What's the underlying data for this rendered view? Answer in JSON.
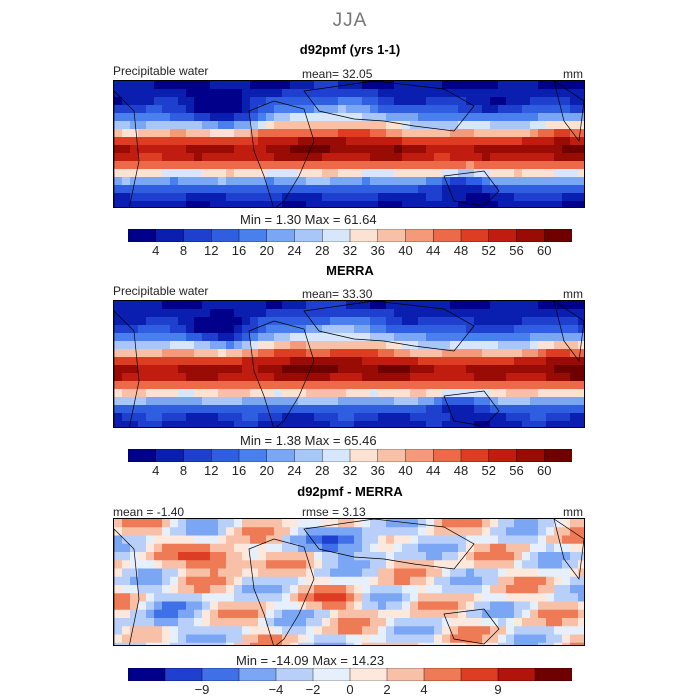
{
  "title": "JJA",
  "units": "mm",
  "panels": [
    {
      "title": "d92pmf (yrs 1-1)",
      "label": "Precipitable water",
      "stat_text": "mean=   32.05",
      "units": "mm",
      "minmax_text": "Min =     1.30  Max =   61.64",
      "kind": "full"
    },
    {
      "title": "MERRA",
      "label": "Precipitable water",
      "stat_text": "mean=   33.30",
      "units": "mm",
      "minmax_text": "Min =     1.38  Max =   65.46",
      "kind": "full"
    },
    {
      "title": "d92pmf - MERRA",
      "label": "mean =  -1.40",
      "stat_text": "rmse =     3.13",
      "units": "mm",
      "minmax_text": "Min = -14.09  Max =   14.23",
      "kind": "diff"
    }
  ],
  "chart_data": [
    {
      "type": "heatmap",
      "title": "d92pmf (yrs 1-1)",
      "variable": "Precipitable water",
      "mean": 32.05,
      "min": 1.3,
      "max": 61.64,
      "units": "mm",
      "colorbar_ticks": [
        "4",
        "8",
        "12",
        "16",
        "20",
        "24",
        "28",
        "32",
        "36",
        "40",
        "44",
        "48",
        "52",
        "56",
        "60"
      ]
    },
    {
      "type": "heatmap",
      "title": "MERRA",
      "variable": "Precipitable water",
      "mean": 33.3,
      "min": 1.38,
      "max": 65.46,
      "units": "mm",
      "colorbar_ticks": [
        "4",
        "8",
        "12",
        "16",
        "20",
        "24",
        "28",
        "32",
        "36",
        "40",
        "44",
        "48",
        "52",
        "56",
        "60"
      ]
    },
    {
      "type": "heatmap",
      "title": "d92pmf - MERRA",
      "mean": -1.4,
      "rmse": 3.13,
      "min": -14.09,
      "max": 14.23,
      "units": "mm",
      "colorbar_ticks": [
        "-9",
        "-4",
        "-2",
        "0",
        "2",
        "4",
        "9"
      ]
    }
  ],
  "colors": {
    "seq": [
      "#00008b",
      "#0a1fb0",
      "#1f3fcf",
      "#2f5fe0",
      "#4a80ee",
      "#7aa6f4",
      "#a8c6f8",
      "#d6e6fb",
      "#fbe2d3",
      "#f8c0a6",
      "#f49a7a",
      "#ec6a4a",
      "#dd3d22",
      "#c01d10",
      "#990b05",
      "#6e0000"
    ],
    "div": [
      "#00008b",
      "#1f3fcf",
      "#3f70e8",
      "#7aa6f4",
      "#b8d0f9",
      "#e6effc",
      "#fce8dc",
      "#f8c0a6",
      "#ee7a56",
      "#dd3d22",
      "#b0140a",
      "#6e0000"
    ]
  }
}
